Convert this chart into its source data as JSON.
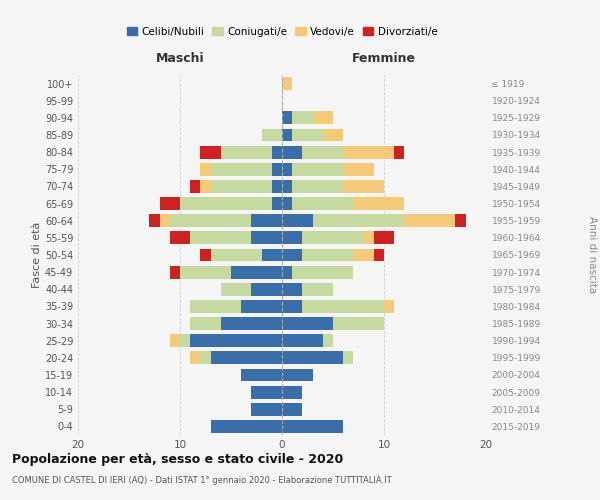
{
  "age_groups": [
    "0-4",
    "5-9",
    "10-14",
    "15-19",
    "20-24",
    "25-29",
    "30-34",
    "35-39",
    "40-44",
    "45-49",
    "50-54",
    "55-59",
    "60-64",
    "65-69",
    "70-74",
    "75-79",
    "80-84",
    "85-89",
    "90-94",
    "95-99",
    "100+"
  ],
  "birth_years": [
    "2015-2019",
    "2010-2014",
    "2005-2009",
    "2000-2004",
    "1995-1999",
    "1990-1994",
    "1985-1989",
    "1980-1984",
    "1975-1979",
    "1970-1974",
    "1965-1969",
    "1960-1964",
    "1955-1959",
    "1950-1954",
    "1945-1949",
    "1940-1944",
    "1935-1939",
    "1930-1934",
    "1925-1929",
    "1920-1924",
    "≤ 1919"
  ],
  "males": {
    "celibi": [
      7,
      3,
      3,
      4,
      7,
      9,
      6,
      4,
      3,
      5,
      2,
      3,
      3,
      1,
      1,
      1,
      1,
      0,
      0,
      0,
      0
    ],
    "coniugati": [
      0,
      0,
      0,
      0,
      1,
      1,
      3,
      5,
      3,
      5,
      5,
      6,
      8,
      9,
      6,
      6,
      5,
      2,
      0,
      0,
      0
    ],
    "vedovi": [
      0,
      0,
      0,
      0,
      1,
      1,
      0,
      0,
      0,
      0,
      0,
      0,
      1,
      0,
      1,
      1,
      0,
      0,
      0,
      0,
      0
    ],
    "divorziati": [
      0,
      0,
      0,
      0,
      0,
      0,
      0,
      0,
      0,
      1,
      1,
      2,
      1,
      2,
      1,
      0,
      2,
      0,
      0,
      0,
      0
    ]
  },
  "females": {
    "nubili": [
      6,
      2,
      2,
      3,
      6,
      4,
      5,
      2,
      2,
      1,
      2,
      2,
      3,
      1,
      1,
      1,
      2,
      1,
      1,
      0,
      0
    ],
    "coniugate": [
      0,
      0,
      0,
      0,
      1,
      1,
      5,
      8,
      3,
      6,
      5,
      6,
      9,
      6,
      5,
      5,
      4,
      3,
      2,
      0,
      0
    ],
    "vedove": [
      0,
      0,
      0,
      0,
      0,
      0,
      0,
      1,
      0,
      0,
      2,
      1,
      5,
      5,
      4,
      3,
      5,
      2,
      2,
      0,
      1
    ],
    "divorziate": [
      0,
      0,
      0,
      0,
      0,
      0,
      0,
      0,
      0,
      0,
      1,
      2,
      1,
      0,
      0,
      0,
      1,
      0,
      0,
      0,
      0
    ]
  },
  "colors": {
    "celibi": "#3a6ea8",
    "coniugati": "#c5d9a0",
    "vedovi": "#f5c97a",
    "divorziati": "#cc2222"
  },
  "xlim": 20,
  "title": "Popolazione per età, sesso e stato civile - 2020",
  "subtitle": "COMUNE DI CASTEL DI IERI (AQ) - Dati ISTAT 1° gennaio 2020 - Elaborazione TUTTITALIA.IT",
  "ylabel_left": "Fasce di età",
  "ylabel_right": "Anni di nascita",
  "xlabel_left": "Maschi",
  "xlabel_right": "Femmine",
  "legend_labels": [
    "Celibi/Nubili",
    "Coniugati/e",
    "Vedovi/e",
    "Divorziati/e"
  ],
  "background_color": "#f5f5f5"
}
